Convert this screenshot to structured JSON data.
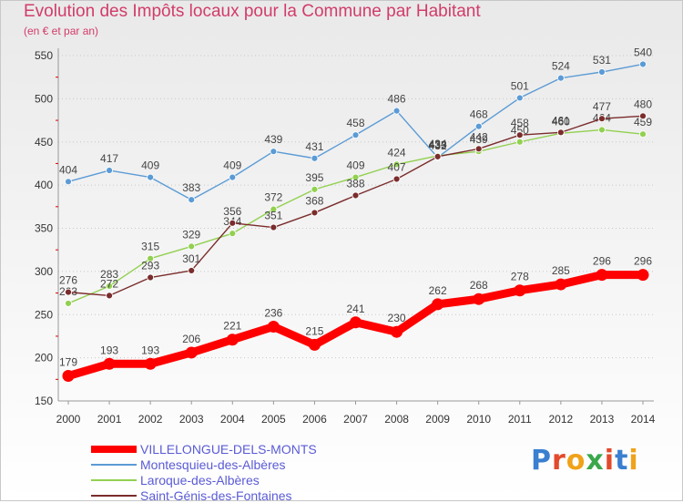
{
  "title": "Evolution des Impôts locaux pour la Commune par Habitant",
  "subtitle": "(en € et par an)",
  "logo": {
    "text": "Proxiti"
  },
  "chart_data": {
    "type": "line",
    "title": "Evolution des Impôts locaux pour la Commune par Habitant",
    "subtitle": "(en € et par an)",
    "x": [
      2000,
      2001,
      2002,
      2003,
      2004,
      2005,
      2006,
      2007,
      2008,
      2009,
      2010,
      2011,
      2012,
      2013,
      2014
    ],
    "ylim": [
      150,
      550
    ],
    "yticks": [
      150,
      200,
      250,
      300,
      350,
      400,
      450,
      500,
      550
    ],
    "grid": "horizontal-dotted",
    "legend_position": "bottom-left",
    "series": [
      {
        "name": "VILLELONGUE-DELS-MONTS",
        "color": "#ff0000",
        "values": [
          179,
          193,
          193,
          206,
          221,
          236,
          215,
          241,
          230,
          262,
          268,
          278,
          285,
          296,
          296
        ]
      },
      {
        "name": "Montesquieu-des-Albères",
        "color": "#5b9bd5",
        "values": [
          404,
          417,
          409,
          383,
          409,
          439,
          431,
          458,
          486,
          432,
          468,
          501,
          524,
          531,
          540
        ]
      },
      {
        "name": "Laroque-des-Albères",
        "color": "#92d050",
        "values": [
          263,
          283,
          315,
          329,
          344,
          372,
          395,
          409,
          424,
          434,
          439,
          450,
          460,
          464,
          459
        ]
      },
      {
        "name": "Saint-Génis-des-Fontaines",
        "color": "#7b2c2c",
        "values": [
          276,
          272,
          293,
          301,
          356,
          351,
          368,
          388,
          407,
          433,
          442,
          458,
          461,
          477,
          480
        ]
      }
    ]
  }
}
